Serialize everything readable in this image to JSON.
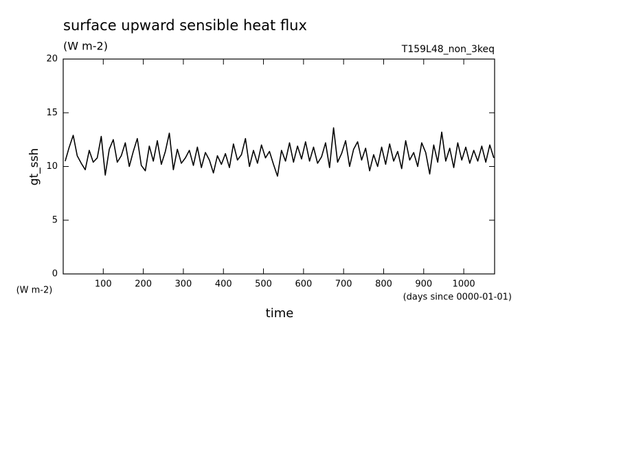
{
  "chart_data": {
    "type": "line",
    "title": "surface upward sensible heat flux",
    "subtitle": "(W m-2)",
    "annotation": "T159L48_non_3keq",
    "ylabel": "gt_ssh",
    "yunits": "(W m-2)",
    "xlabel": "time",
    "xunits": "(days since 0000-01-01)",
    "color": "#000000",
    "xlim": [
      0,
      1077
    ],
    "ylim": [
      0,
      20
    ],
    "xticks": [
      100,
      200,
      300,
      400,
      500,
      600,
      700,
      800,
      900,
      1000
    ],
    "yticks": [
      0,
      5,
      10,
      15,
      20
    ],
    "x": [
      5,
      15,
      25,
      35,
      45,
      55,
      65,
      75,
      85,
      95,
      105,
      115,
      125,
      135,
      145,
      155,
      165,
      175,
      185,
      195,
      205,
      215,
      225,
      235,
      245,
      255,
      265,
      275,
      285,
      295,
      305,
      315,
      325,
      335,
      345,
      355,
      365,
      375,
      385,
      395,
      405,
      415,
      425,
      435,
      445,
      455,
      465,
      475,
      485,
      495,
      505,
      515,
      525,
      535,
      545,
      555,
      565,
      575,
      585,
      595,
      605,
      615,
      625,
      635,
      645,
      655,
      665,
      675,
      685,
      695,
      705,
      715,
      725,
      735,
      745,
      755,
      765,
      775,
      785,
      795,
      805,
      815,
      825,
      835,
      845,
      855,
      865,
      875,
      885,
      895,
      905,
      915,
      925,
      935,
      945,
      955,
      965,
      975,
      985,
      995,
      1005,
      1015,
      1025,
      1035,
      1045,
      1055,
      1065,
      1075
    ],
    "values": [
      10.5,
      11.8,
      12.9,
      11,
      10.3,
      9.7,
      11.5,
      10.4,
      10.8,
      12.8,
      9.2,
      11.6,
      12.5,
      10.4,
      11,
      12.2,
      10,
      11.4,
      12.6,
      10.1,
      9.6,
      11.9,
      10.5,
      12.4,
      10.2,
      11.4,
      13.1,
      9.7,
      11.6,
      10.3,
      10.8,
      11.5,
      10.1,
      11.8,
      9.9,
      11.3,
      10.6,
      9.4,
      11,
      10.2,
      11.2,
      9.9,
      12.1,
      10.6,
      11.1,
      12.6,
      10,
      11.5,
      10.3,
      12,
      10.8,
      11.4,
      10.2,
      9.1,
      11.5,
      10.5,
      12.2,
      10.4,
      11.9,
      10.7,
      12.3,
      10.5,
      11.8,
      10.3,
      10.9,
      12.2,
      9.9,
      13.6,
      10.4,
      11.2,
      12.4,
      10,
      11.6,
      12.3,
      10.6,
      11.7,
      9.6,
      11.1,
      10,
      11.8,
      10.2,
      12.1,
      10.5,
      11.4,
      9.8,
      12.4,
      10.6,
      11.3,
      10,
      12.2,
      11.3,
      9.3,
      12,
      10.4,
      13.2,
      10.5,
      11.7,
      9.9,
      12.2,
      10.6,
      11.8,
      10.3,
      11.5,
      10.5,
      11.9,
      10.4,
      12,
      10.8
    ]
  }
}
